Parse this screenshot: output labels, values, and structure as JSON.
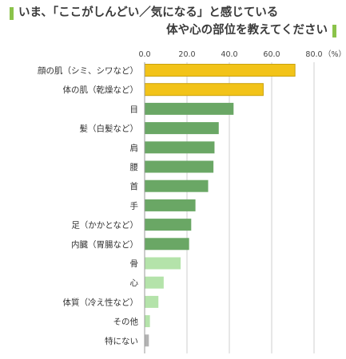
{
  "title": {
    "line1": "いま、「ここがしんどい／気になる」と感じている",
    "line2": "体や心の部位を教えてください"
  },
  "colors": {
    "highlight": "#f2c318",
    "highlight_border": "#c9a10c",
    "main": "#6aa765",
    "light": "#b4e3aa",
    "gray": "#b3b3b3",
    "title_accent": "#8bc34a",
    "grid": "#cfcfcf"
  },
  "chart_data": {
    "type": "bar",
    "orientation": "horizontal",
    "unit_label": "（%）",
    "xlim": [
      0,
      80
    ],
    "ticks": [
      "0.0",
      "20.0",
      "40.0",
      "60.0",
      "80.0"
    ],
    "grid": true,
    "categories": [
      "顔の肌（シミ、シワなど）",
      "体の肌（乾燥など）",
      "目",
      "髪（白髪など）",
      "肩",
      "腰",
      "首",
      "手",
      "足（かかとなど）",
      "内臓（胃腸など）",
      "骨",
      "心",
      "体質（冷え性など）",
      "その他",
      "特にない"
    ],
    "values": [
      71.0,
      56.0,
      42.0,
      35.0,
      33.0,
      32.5,
      30.0,
      24.0,
      22.0,
      21.0,
      17.0,
      9.0,
      6.5,
      2.5,
      2.0
    ],
    "bar_style": [
      "highlight",
      "highlight",
      "main",
      "main",
      "main",
      "main",
      "main",
      "main",
      "main",
      "main",
      "light",
      "light",
      "light",
      "light",
      "gray"
    ]
  }
}
